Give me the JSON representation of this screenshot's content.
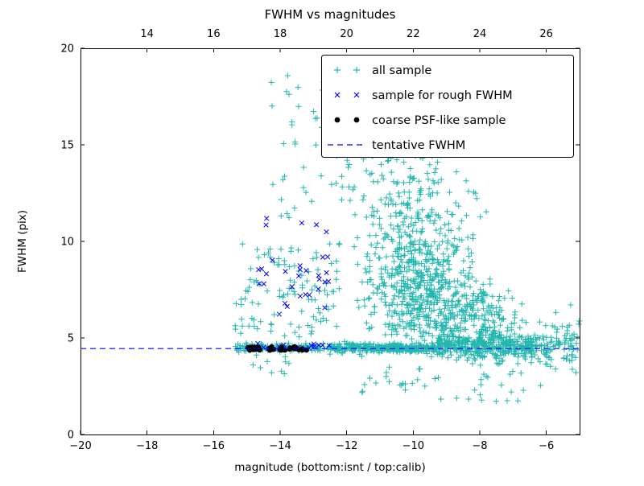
{
  "chart_data": {
    "type": "scatter",
    "title": "FWHM vs magnitudes",
    "xlabel": "magnitude (bottom:isnt / top:calib)",
    "ylabel": "FWHM (pix)",
    "axes": {
      "x_bottom": {
        "min": -20,
        "max": -5,
        "ticks": [
          -20,
          -18,
          -16,
          -14,
          -12,
          -10,
          -8,
          -6
        ],
        "tick_labels": [
          "−20",
          "−18",
          "−16",
          "−14",
          "−12",
          "−10",
          "−8",
          "−6"
        ]
      },
      "x_top": {
        "offset_from_bottom": 32,
        "ticks": [
          14,
          16,
          18,
          20,
          22,
          24,
          26
        ],
        "tick_labels": [
          "14",
          "16",
          "18",
          "20",
          "22",
          "24",
          "26"
        ]
      },
      "y": {
        "min": 0,
        "max": 20,
        "ticks": [
          0,
          5,
          10,
          15,
          20
        ],
        "tick_labels": [
          "0",
          "5",
          "10",
          "15",
          "20"
        ]
      }
    },
    "tentative_fwhm": {
      "y": 4.45,
      "color": "#0000ff",
      "style": "dashed"
    },
    "series": [
      {
        "name": "all sample",
        "marker": "plus",
        "color": "#21b6ae",
        "seed": 42,
        "clusters": [
          {
            "n": 130,
            "x": {
              "type": "uniform",
              "min": -15.35,
              "max": -12.5
            },
            "y": {
              "type": "normal",
              "mean": 4.5,
              "sd": 0.1,
              "min": 4.25,
              "max": 4.85
            }
          },
          {
            "n": 300,
            "x": {
              "type": "uniform",
              "min": -12.5,
              "max": -9.3
            },
            "y": {
              "type": "normal",
              "mean": 4.47,
              "sd": 0.12,
              "min": 4.1,
              "max": 4.9
            }
          },
          {
            "n": 320,
            "x": {
              "type": "uniform",
              "min": -9.3,
              "max": -6.4
            },
            "y": {
              "type": "normal",
              "mean": 4.55,
              "sd": 0.3,
              "min": 3.6,
              "max": 5.7
            }
          },
          {
            "n": 70,
            "x": {
              "type": "uniform",
              "min": -6.4,
              "max": -5.05
            },
            "y": {
              "type": "normal",
              "mean": 4.6,
              "sd": 0.5,
              "min": 3.2,
              "max": 6.3
            }
          },
          {
            "n": 430,
            "x": {
              "type": "normal",
              "mean": -9.6,
              "sd": 0.85,
              "min": -11.8,
              "max": -7.4
            },
            "y": {
              "type": "normal",
              "mean": 6.9,
              "sd": 1.5,
              "min": 4.85,
              "max": 12.0
            }
          },
          {
            "n": 260,
            "x": {
              "type": "normal",
              "mean": -9.9,
              "sd": 0.9,
              "min": -11.9,
              "max": -7.8
            },
            "y": {
              "type": "normal",
              "mean": 9.6,
              "sd": 1.9,
              "min": 6.0,
              "max": 14.2
            }
          },
          {
            "n": 120,
            "x": {
              "type": "normal",
              "mean": -7.9,
              "sd": 0.55,
              "min": -8.8,
              "max": -6.7
            },
            "y": {
              "type": "normal",
              "mean": 5.7,
              "sd": 0.8,
              "min": 4.6,
              "max": 8.2
            }
          },
          {
            "n": 60,
            "x": {
              "type": "uniform",
              "min": -13.9,
              "max": -9.3
            },
            "y": {
              "type": "uniform",
              "min": 12.8,
              "max": 18.6
            }
          },
          {
            "n": 70,
            "x": {
              "type": "normal",
              "mean": -10.2,
              "sd": 1.0,
              "min": -12.6,
              "max": -8.2
            },
            "y": {
              "type": "uniform",
              "min": 11.0,
              "max": 14.5
            }
          },
          {
            "n": 110,
            "x": {
              "type": "uniform",
              "min": -15.4,
              "max": -12.2
            },
            "y": {
              "type": "uniform",
              "min": 5.0,
              "max": 9.9
            }
          },
          {
            "n": 22,
            "x": {
              "type": "uniform",
              "min": -14.3,
              "max": -12.6
            },
            "y": {
              "type": "uniform",
              "min": 10.0,
              "max": 18.3
            }
          },
          {
            "n": 90,
            "x": {
              "type": "uniform",
              "min": -8.2,
              "max": -5.0
            },
            "y": {
              "type": "normal",
              "mean": 4.7,
              "sd": 1.0,
              "min": 2.3,
              "max": 7.4
            }
          },
          {
            "n": 45,
            "x": {
              "type": "uniform",
              "min": -11.6,
              "max": -6.6
            },
            "y": {
              "type": "uniform",
              "min": 1.6,
              "max": 4.1
            }
          },
          {
            "n": 10,
            "x": {
              "type": "uniform",
              "min": -15.2,
              "max": -13.2
            },
            "y": {
              "type": "uniform",
              "min": 3.1,
              "max": 4.2
            }
          }
        ]
      },
      {
        "name": "sample for rough FWHM",
        "marker": "x",
        "color": "#0000ff",
        "seed": 7,
        "clusters": [
          {
            "n": 15,
            "x": {
              "type": "uniform",
              "min": -14.7,
              "max": -12.45
            },
            "y": {
              "type": "normal",
              "mean": 4.55,
              "sd": 0.07,
              "min": 4.4,
              "max": 4.75
            }
          },
          {
            "n": 24,
            "x": {
              "type": "uniform",
              "min": -14.5,
              "max": -12.5
            },
            "y": {
              "type": "uniform",
              "min": 6.2,
              "max": 9.3
            }
          },
          {
            "n": 5,
            "x": {
              "type": "uniform",
              "min": -14.45,
              "max": -12.6
            },
            "y": {
              "type": "uniform",
              "min": 10.2,
              "max": 11.25
            }
          },
          {
            "n": 3,
            "x": {
              "type": "uniform",
              "min": -15.05,
              "max": -14.55
            },
            "y": {
              "type": "uniform",
              "min": 7.6,
              "max": 9.1
            }
          }
        ]
      },
      {
        "name": "coarse PSF-like sample",
        "marker": "circle",
        "color": "#000000",
        "seed": 13,
        "clusters": [
          {
            "n": 34,
            "x": {
              "type": "uniform",
              "min": -15.0,
              "max": -13.15
            },
            "y": {
              "type": "normal",
              "mean": 4.44,
              "sd": 0.055,
              "min": 4.3,
              "max": 4.58
            }
          }
        ]
      }
    ],
    "legend": {
      "items": [
        {
          "label": "all sample",
          "marker": "plus",
          "color": "#21b6ae"
        },
        {
          "label": "sample for rough FWHM",
          "marker": "x",
          "color": "#0000ff"
        },
        {
          "label": "coarse PSF-like sample",
          "marker": "circle",
          "color": "#000000"
        },
        {
          "label": "tentative FWHM",
          "marker": "dashed-line",
          "color": "#0000ff"
        }
      ]
    }
  }
}
